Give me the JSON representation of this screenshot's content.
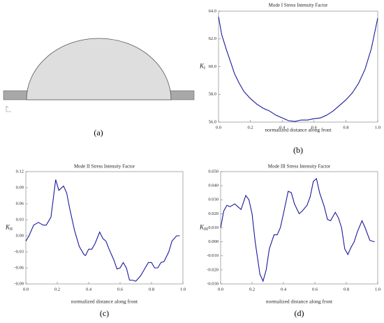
{
  "diagram": {
    "panel_label": "(a)"
  },
  "chart_data": [
    {
      "type": "line",
      "title": "Mode I Stress Intensity Factor",
      "xlabel": "normalized distance along front",
      "ylabel": {
        "symbol": "K",
        "subscript": "I"
      },
      "panel_label": "(b)",
      "color": "#1a1a9c",
      "x": [
        0,
        0.02,
        0.05,
        0.08,
        0.1,
        0.13,
        0.16,
        0.2,
        0.24,
        0.28,
        0.32,
        0.36,
        0.4,
        0.44,
        0.48,
        0.52,
        0.56,
        0.6,
        0.64,
        0.68,
        0.72,
        0.76,
        0.8,
        0.84,
        0.88,
        0.92,
        0.96,
        1.0
      ],
      "values": [
        63.6,
        62.3,
        61.2,
        60.2,
        59.5,
        58.8,
        58.2,
        57.7,
        57.3,
        57.0,
        56.8,
        56.5,
        56.3,
        56.1,
        56.05,
        56.15,
        56.15,
        56.25,
        56.3,
        56.5,
        56.8,
        57.2,
        57.6,
        58.1,
        58.8,
        59.8,
        61.3,
        63.5
      ],
      "xlim": [
        0,
        1
      ],
      "xticks": [
        {
          "value": 0,
          "label": "0.0"
        },
        0.2,
        0.4,
        0.6,
        0.8,
        {
          "value": 1,
          "label": "1.0"
        }
      ],
      "ylim": [
        56,
        64
      ],
      "yticks": [
        {
          "value": 56,
          "label": "56.0"
        },
        {
          "value": 58,
          "label": "58.0"
        },
        {
          "value": 60,
          "label": "60.0"
        },
        {
          "value": 62,
          "label": "62.0"
        },
        {
          "value": 64,
          "label": "64.0"
        }
      ]
    },
    {
      "type": "line",
      "title": "Mode II Stress Intensity Factor",
      "xlabel": "normalized distance along front",
      "ylabel": {
        "symbol": "K",
        "subscript": "II"
      },
      "panel_label": "(c)",
      "color": "#1a1a9c",
      "x": [
        0,
        0.02,
        0.05,
        0.08,
        0.11,
        0.13,
        0.16,
        0.19,
        0.21,
        0.24,
        0.26,
        0.28,
        0.31,
        0.34,
        0.37,
        0.38,
        0.4,
        0.42,
        0.44,
        0.47,
        0.49,
        0.51,
        0.53,
        0.56,
        0.58,
        0.6,
        0.62,
        0.64,
        0.66,
        0.68,
        0.7,
        0.73,
        0.76,
        0.78,
        0.8,
        0.82,
        0.84,
        0.86,
        0.88,
        0.91,
        0.93,
        0.96,
        0.98
      ],
      "values": [
        -0.01,
        0.0,
        0.02,
        0.025,
        0.02,
        0.02,
        0.035,
        0.105,
        0.085,
        0.093,
        0.08,
        0.05,
        0.01,
        -0.02,
        -0.035,
        -0.037,
        -0.025,
        -0.025,
        -0.015,
        0.007,
        -0.005,
        -0.01,
        -0.025,
        -0.045,
        -0.062,
        -0.06,
        -0.05,
        -0.06,
        -0.083,
        -0.083,
        -0.085,
        -0.075,
        -0.06,
        -0.05,
        -0.05,
        -0.06,
        -0.06,
        -0.05,
        -0.048,
        -0.03,
        -0.01,
        0.0,
        0.0
      ],
      "xlim": [
        0,
        1
      ],
      "xticks": [
        {
          "value": 0,
          "label": "0.0"
        },
        0.2,
        0.4,
        0.6,
        0.8,
        {
          "value": 1,
          "label": "1.0"
        }
      ],
      "ylim": [
        -0.09,
        0.12
      ],
      "yticks": [
        -0.09,
        -0.06,
        -0.03,
        {
          "value": 0,
          "label": "0.00"
        },
        0.03,
        0.06,
        0.09,
        0.12
      ]
    },
    {
      "type": "line",
      "title": "Mode III Stress Intensity Factor",
      "xlabel": "normalized distance along front",
      "ylabel": {
        "symbol": "K",
        "subscript": "III"
      },
      "panel_label": "(d)",
      "color": "#1a1a9c",
      "x": [
        0,
        0.02,
        0.04,
        0.06,
        0.09,
        0.11,
        0.13,
        0.16,
        0.18,
        0.2,
        0.22,
        0.25,
        0.27,
        0.29,
        0.31,
        0.34,
        0.36,
        0.38,
        0.4,
        0.43,
        0.45,
        0.47,
        0.5,
        0.52,
        0.55,
        0.57,
        0.59,
        0.61,
        0.63,
        0.66,
        0.68,
        0.7,
        0.73,
        0.75,
        0.77,
        0.79,
        0.81,
        0.83,
        0.85,
        0.87,
        0.9,
        0.92,
        0.95,
        0.98
      ],
      "values": [
        0.01,
        0.022,
        0.026,
        0.025,
        0.027,
        0.025,
        0.023,
        0.033,
        0.03,
        0.02,
        0.0,
        -0.023,
        -0.028,
        -0.02,
        -0.005,
        0.005,
        0.005,
        0.01,
        0.02,
        0.036,
        0.035,
        0.027,
        0.02,
        0.022,
        0.026,
        0.032,
        0.043,
        0.045,
        0.035,
        0.025,
        0.016,
        0.015,
        0.021,
        0.017,
        0.01,
        -0.005,
        -0.009,
        -0.004,
        0.0,
        0.007,
        0.015,
        0.01,
        0.001,
        0.0
      ],
      "xlim": [
        0,
        1
      ],
      "xticks": [
        {
          "value": 0,
          "label": "0.0"
        },
        0.2,
        0.4,
        0.6,
        0.8,
        {
          "value": 1,
          "label": "1.0"
        }
      ],
      "ylim": [
        -0.03,
        0.05
      ],
      "yticks": [
        {
          "value": -0.03,
          "label": "-0.030"
        },
        {
          "value": -0.02,
          "label": "-0.020"
        },
        {
          "value": -0.01,
          "label": "-0.010"
        },
        {
          "value": 0,
          "label": "0.000"
        },
        {
          "value": 0.01,
          "label": "0.010"
        },
        {
          "value": 0.02,
          "label": "0.020"
        },
        {
          "value": 0.03,
          "label": "0.030"
        },
        {
          "value": 0.04,
          "label": "0.040"
        },
        {
          "value": 0.05,
          "label": "0.050"
        }
      ]
    }
  ]
}
